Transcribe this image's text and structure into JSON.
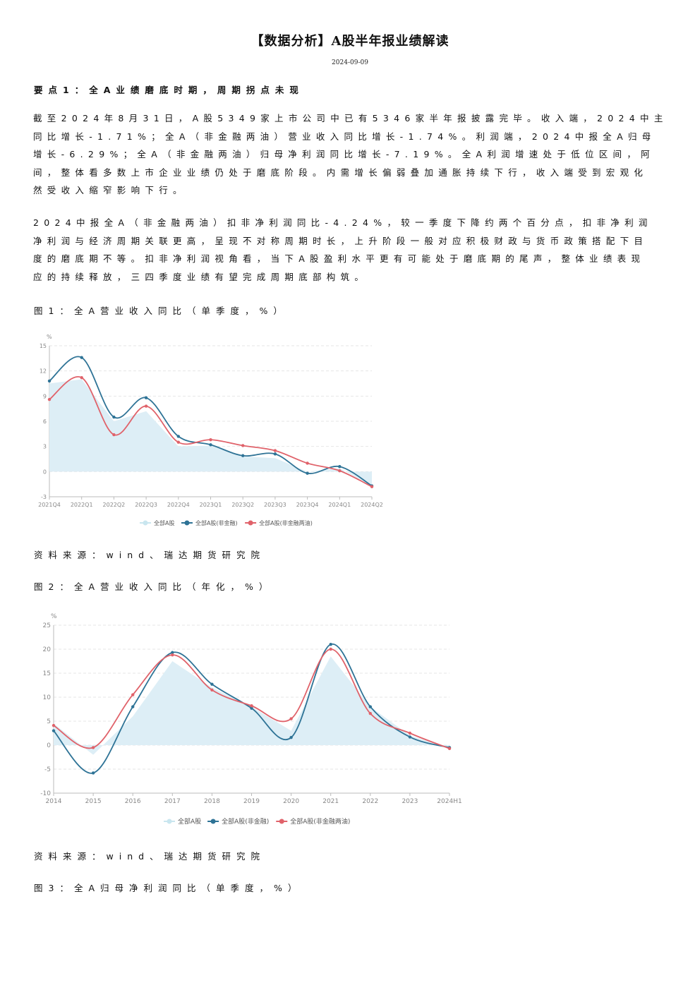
{
  "title": "【数据分析】A股半年报业绩解读",
  "date": "2024-09-09",
  "point1_heading": "要点1：全A业绩磨底时期，周期拐点未现",
  "para1_lines": [
    "截至2024年8月31日，A股5349家上市公司中已有5346家半年报披露完毕。收入端，2024中主",
    "同比增长-1.71%；全A（非金融两油）营业收入同比增长-1.74%。利润端，2024中报全A归母",
    "增长-6.29%；全A（非金融两油）归母净利润同比增长-7.19%。全A利润增速处于低位区间，阿",
    "间，整体看多数上市企业业绩仍处于磨底阶段。内需增长偏弱叠加通胀持续下行，收入端受到宏观化",
    "然受收入缩窄影响下行。"
  ],
  "para2_lines": [
    "2024中报全A（非金融两油）扣非净利润同比-4.24%，较一季度下降约两个百分点，扣非净利润",
    "净利润与经济周期关联更高，呈现不对称周期时长，上升阶段一般对应积极财政与货币政策搭配下目",
    "度的磨底期不等。扣非净利润视角看，当下A股盈利水平更有可能处于磨底期的尾声，整体业绩表现",
    "应的持续释放，三四季度业绩有望完成周期底部构筑。"
  ],
  "fig1_caption": "图1：全A营业收入同比（单季度，%）",
  "fig2_caption": "图2：全A营业收入同比（年化，%）",
  "fig3_caption": "图3：全A归母净利润同比（单季度，%）",
  "source1": "资料来源：wind、瑞达期货研究院",
  "source2": "资料来源：wind、瑞达期货研究院",
  "colors": {
    "area": "#ddeef6",
    "blue": "#2e7396",
    "red": "#e0626a",
    "axis": "#bbbbbb",
    "label": "#888888"
  },
  "chart_data": [
    {
      "type": "line",
      "unit": "%",
      "categories": [
        "2021Q4",
        "2022Q1",
        "2022Q2",
        "2022Q3",
        "2022Q4",
        "2023Q1",
        "2023Q2",
        "2023Q3",
        "2023Q4",
        "2024Q1",
        "2024Q2"
      ],
      "ylim": [
        -3,
        15
      ],
      "yticks": [
        "-3",
        "0",
        "3",
        "6",
        "9",
        "12",
        "15"
      ],
      "series": [
        {
          "name": "全部A股",
          "style": "area",
          "values": [
            10.5,
            11.0,
            6.0,
            7.2,
            3.0,
            3.1,
            1.8,
            1.6,
            0.0,
            0.4,
            -1.7
          ]
        },
        {
          "name": "全部A股(非金融)",
          "style": "line",
          "color": "blue",
          "values": [
            10.8,
            13.6,
            6.5,
            8.8,
            4.2,
            3.2,
            1.9,
            2.1,
            -0.2,
            0.6,
            -1.7
          ]
        },
        {
          "name": "全部A股(非金融两油)",
          "style": "line",
          "color": "red",
          "values": [
            8.6,
            11.2,
            4.4,
            7.8,
            3.5,
            3.8,
            3.1,
            2.5,
            1.0,
            0.1,
            -1.8
          ]
        }
      ]
    },
    {
      "type": "line",
      "unit": "%",
      "categories": [
        "2014",
        "2015",
        "2016",
        "2017",
        "2018",
        "2019",
        "2020",
        "2021",
        "2022",
        "2023",
        "2024H1"
      ],
      "ylim": [
        -10,
        25
      ],
      "yticks": [
        "-10",
        "-5",
        "0",
        "5",
        "10",
        "15",
        "20",
        "25"
      ],
      "series": [
        {
          "name": "全部A股",
          "style": "area",
          "values": [
            4.5,
            -2.0,
            6.0,
            17.5,
            12.0,
            8.0,
            3.0,
            18.5,
            8.0,
            2.0,
            -0.5
          ]
        },
        {
          "name": "全部A股(非金融)",
          "style": "line",
          "color": "blue",
          "values": [
            3.0,
            -5.8,
            8.0,
            19.3,
            12.7,
            7.7,
            1.6,
            21.0,
            8.0,
            1.7,
            -0.5
          ]
        },
        {
          "name": "全部A股(非金融两油)",
          "style": "line",
          "color": "red",
          "values": [
            4.1,
            -0.5,
            10.5,
            18.8,
            11.5,
            8.2,
            5.5,
            20.0,
            6.6,
            2.5,
            -0.7
          ]
        }
      ]
    }
  ]
}
